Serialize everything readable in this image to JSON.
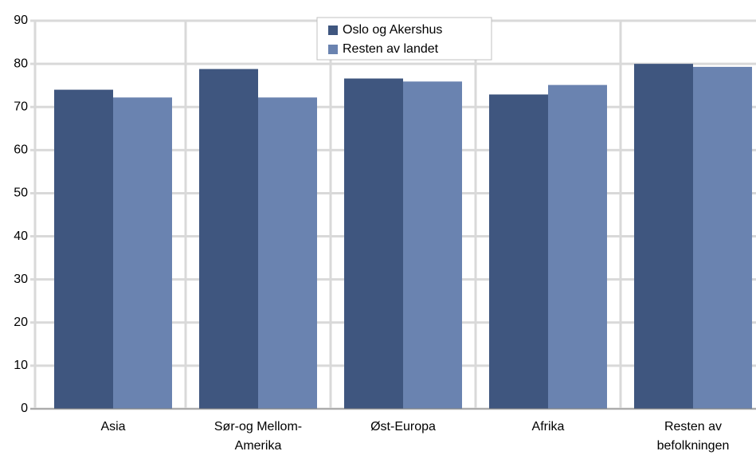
{
  "chart_data": {
    "type": "bar",
    "categories": [
      "Asia",
      "Sør-og Mellom-Amerika",
      "Øst-Europa",
      "Afrika",
      "Resten av befolkningen"
    ],
    "series": [
      {
        "name": "Oslo og Akershus",
        "color": "#3f567f",
        "values": [
          74,
          78.8,
          76.6,
          72.9,
          80
        ]
      },
      {
        "name": "Resten av landet",
        "color": "#6a83b0",
        "values": [
          72.2,
          72.2,
          75.9,
          75.1,
          79.3
        ]
      }
    ],
    "ylim": [
      0,
      90
    ],
    "yticks": [
      0,
      10,
      20,
      30,
      40,
      50,
      60,
      70,
      80,
      90
    ],
    "grid": true,
    "legend": "top"
  }
}
